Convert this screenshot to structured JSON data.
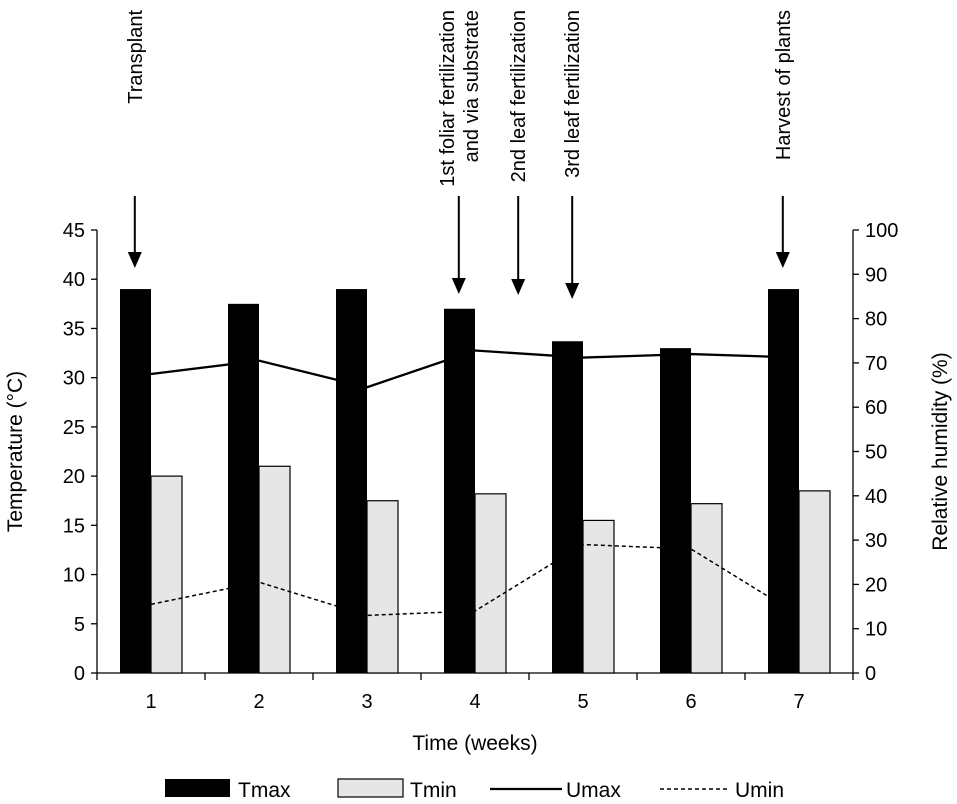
{
  "chart_data": {
    "type": "bar",
    "title": "",
    "categories": [
      "1",
      "2",
      "3",
      "4",
      "5",
      "6",
      "7"
    ],
    "xlabel": "Time (weeks)",
    "ylabel": "Temperature (°C)",
    "y2label": "Relative humidity (%)",
    "ylim": [
      0,
      45
    ],
    "y2lim": [
      0,
      100
    ],
    "yticks": [
      "0",
      "5",
      "10",
      "15",
      "20",
      "25",
      "30",
      "35",
      "40",
      "45"
    ],
    "y2ticks": [
      "0",
      "10",
      "20",
      "30",
      "40",
      "50",
      "60",
      "70",
      "80",
      "90",
      "100"
    ],
    "series": [
      {
        "name": "Tmax",
        "kind": "bar",
        "axis": "left",
        "color": "#000000",
        "values": [
          39.0,
          37.5,
          39.0,
          37.0,
          33.7,
          33.0,
          39.0
        ]
      },
      {
        "name": "Tmin",
        "kind": "bar",
        "axis": "left",
        "color": "#e6e6e6",
        "values": [
          20.0,
          21.0,
          17.5,
          18.2,
          15.5,
          17.2,
          18.5
        ]
      },
      {
        "name": "Umax",
        "kind": "line",
        "axis": "right",
        "style": "solid",
        "color": "#000000",
        "values": [
          67.5,
          70.5,
          64.5,
          72.8,
          71.2,
          72.0,
          71.2
        ]
      },
      {
        "name": "Umin",
        "kind": "line",
        "axis": "right",
        "style": "dashed",
        "color": "#000000",
        "values": [
          15.5,
          20.5,
          13.0,
          14.0,
          29.0,
          28.0,
          13.0
        ]
      }
    ],
    "annotations": [
      {
        "lines": [
          "Transplant"
        ],
        "x_week": 0.85
      },
      {
        "lines": [
          "1st foliar fertilization",
          "and via substrate"
        ],
        "x_week": 3.85
      },
      {
        "lines": [
          "2nd leaf fertilization"
        ],
        "x_week": 4.4
      },
      {
        "lines": [
          "3rd leaf fertilization"
        ],
        "x_week": 4.9
      },
      {
        "lines": [
          "Harvest of plants"
        ],
        "x_week": 6.85
      }
    ],
    "legend_position": "bottom",
    "grid": false
  }
}
